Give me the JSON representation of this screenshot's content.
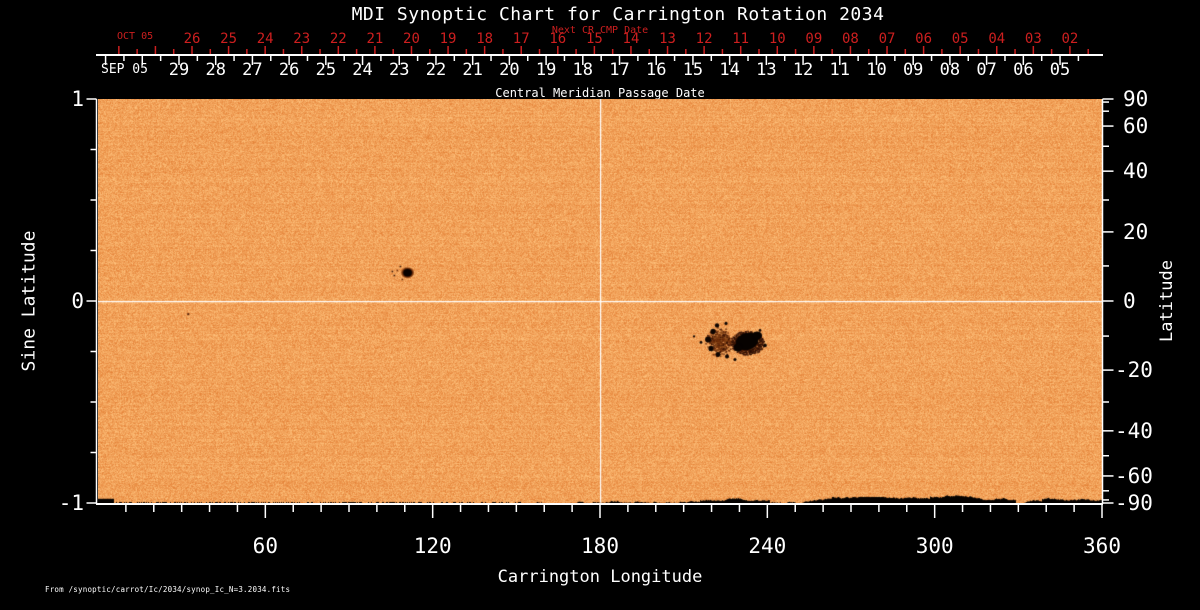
{
  "title": "MDI Synoptic Chart for Carrington Rotation 2034",
  "accent_color": "#cd1f1f",
  "top_axis": {
    "next_label": "Next CR CMP Date",
    "next_month": "OCT 05",
    "next_dates": [
      "26",
      "25",
      "24",
      "23",
      "22",
      "21",
      "20",
      "19",
      "18",
      "17",
      "16",
      "15",
      "14",
      "13",
      "12",
      "11",
      "10",
      "09",
      "08",
      "07",
      "06",
      "05",
      "04",
      "03",
      "02"
    ],
    "cmp_label": "Central Meridian Passage Date",
    "cmp_month": "SEP 05",
    "cmp_dates": [
      "29",
      "28",
      "27",
      "26",
      "25",
      "24",
      "23",
      "22",
      "21",
      "20",
      "19",
      "18",
      "17",
      "16",
      "15",
      "14",
      "13",
      "12",
      "11",
      "10",
      "09",
      "08",
      "07",
      "06",
      "05"
    ]
  },
  "left_axis": {
    "label": "Sine Latitude",
    "ticks": [
      "1",
      "0",
      "-1"
    ]
  },
  "right_axis": {
    "label": "Latitude",
    "ticks": [
      "90",
      "60",
      "40",
      "20",
      "0",
      "-20",
      "-40",
      "-60",
      "-90"
    ]
  },
  "bottom_axis": {
    "label": "Carrington Longitude",
    "ticks": [
      "60",
      "120",
      "180",
      "240",
      "300",
      "360"
    ]
  },
  "footer": "From /synoptic/carrot/Ic/2034/synop_Ic_N=3.2034.fits",
  "chart_data": {
    "type": "heatmap",
    "title": "MDI Synoptic Chart for Carrington Rotation 2034",
    "xlabel": "Carrington Longitude",
    "ylabel": "Sine Latitude",
    "ylabel_right": "Latitude",
    "xlim": [
      0,
      360
    ],
    "ylim": [
      -1,
      1
    ],
    "x_ticks": [
      60,
      120,
      180,
      240,
      300,
      360
    ],
    "sine_latitude_ticks": [
      1,
      0,
      -1
    ],
    "latitude_ticks_deg": [
      90,
      60,
      40,
      20,
      0,
      -20,
      -40,
      -60,
      -90
    ],
    "grid_lines": {
      "longitude_deg": 180,
      "sine_latitude": 0,
      "color": "#ffffff"
    },
    "background": "solar continuum intensity granulation noise",
    "palette": {
      "quiet_sun": "#f6a054",
      "bright_grain": "#ffc382",
      "dark_grain": "#e6873c",
      "penumbra": "#6e2c08",
      "umbra": "#070200"
    },
    "features": [
      {
        "name": "sunspot-small",
        "longitude_deg": 111,
        "sine_latitude": 0.14,
        "latitude_deg": 8
      },
      {
        "name": "sunspot-group-large",
        "longitude_deg": 232,
        "sine_latitude": -0.21,
        "latitude_deg": -12
      },
      {
        "name": "sunspot-pore-tiny",
        "longitude_deg": 32,
        "sine_latitude": -0.06,
        "latitude_deg": -3
      },
      {
        "name": "south-pole-data-gap",
        "longitude_range_deg": [
          186,
          360
        ],
        "sine_latitude": -1
      }
    ]
  }
}
